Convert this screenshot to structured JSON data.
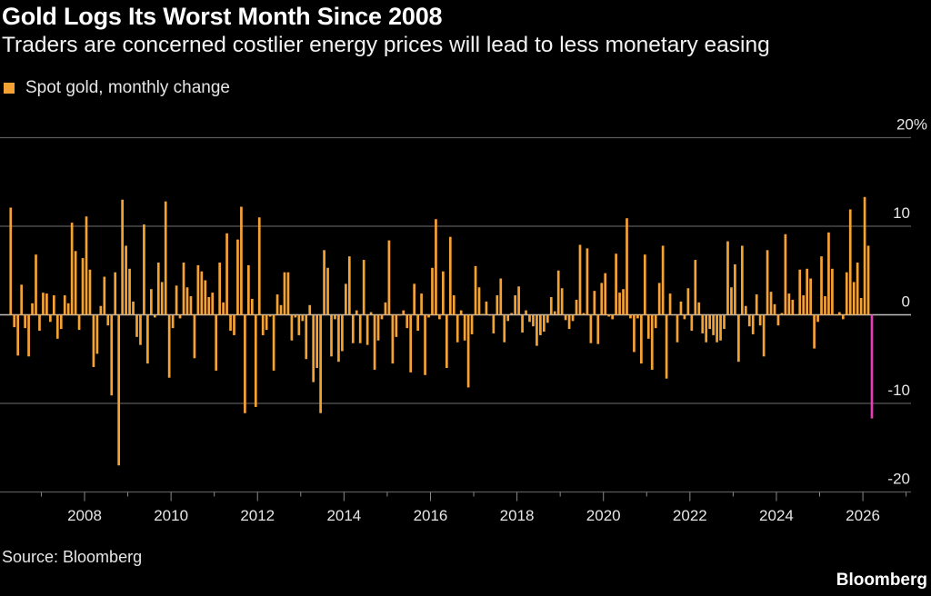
{
  "title": "Gold Logs Its Worst Month Since 2008",
  "subtitle": "Traders are concerned costlier energy prices will lead to less monetary easing",
  "source": "Source: Bloomberg",
  "logo": "Bloomberg",
  "colors": {
    "background": "#000000",
    "bar": "#f5a235",
    "highlight": "#e23fb0",
    "grid": "#5a5a5a",
    "text": "#ffffff"
  },
  "chart_data": {
    "type": "bar",
    "title": "Gold Logs Its Worst Month Since 2008",
    "subtitle": "Traders are concerned costlier energy prices will lead to less monetary easing",
    "legend": [
      {
        "name": "Spot gold, monthly change",
        "color": "#f5a235"
      }
    ],
    "legend_placement": "top-left",
    "xlabel": "",
    "ylabel": "",
    "unit": "%",
    "ylim": [
      -20,
      20
    ],
    "y_ticks": [
      {
        "value": 20,
        "label": "20%"
      },
      {
        "value": 10,
        "label": "10"
      },
      {
        "value": 0,
        "label": "0"
      },
      {
        "value": -10,
        "label": "-10"
      },
      {
        "value": -20,
        "label": "-20"
      }
    ],
    "x_ticks": [
      "2008",
      "2010",
      "2012",
      "2014",
      "2016",
      "2018",
      "2020",
      "2022",
      "2024",
      "2026"
    ],
    "grid": true,
    "y_axis_side": "right",
    "highlight_last": true,
    "series": [
      {
        "name": "Spot gold, monthly change",
        "x": [
          "2006-04",
          "2006-05",
          "2006-06",
          "2006-07",
          "2006-08",
          "2006-09",
          "2006-10",
          "2006-11",
          "2006-12",
          "2007-01",
          "2007-02",
          "2007-03",
          "2007-04",
          "2007-05",
          "2007-06",
          "2007-07",
          "2007-08",
          "2007-09",
          "2007-10",
          "2007-11",
          "2007-12",
          "2008-01",
          "2008-02",
          "2008-03",
          "2008-04",
          "2008-05",
          "2008-06",
          "2008-07",
          "2008-08",
          "2008-09",
          "2008-10",
          "2008-11",
          "2008-12",
          "2009-01",
          "2009-02",
          "2009-03",
          "2009-04",
          "2009-05",
          "2009-06",
          "2009-07",
          "2009-08",
          "2009-09",
          "2009-10",
          "2009-11",
          "2009-12",
          "2010-01",
          "2010-02",
          "2010-03",
          "2010-04",
          "2010-05",
          "2010-06",
          "2010-07",
          "2010-08",
          "2010-09",
          "2010-10",
          "2010-11",
          "2010-12",
          "2011-01",
          "2011-02",
          "2011-03",
          "2011-04",
          "2011-05",
          "2011-06",
          "2011-07",
          "2011-08",
          "2011-09",
          "2011-10",
          "2011-11",
          "2011-12",
          "2012-01",
          "2012-02",
          "2012-03",
          "2012-04",
          "2012-05",
          "2012-06",
          "2012-07",
          "2012-08",
          "2012-09",
          "2012-10",
          "2012-11",
          "2012-12",
          "2013-01",
          "2013-02",
          "2013-03",
          "2013-04",
          "2013-05",
          "2013-06",
          "2013-07",
          "2013-08",
          "2013-09",
          "2013-10",
          "2013-11",
          "2013-12",
          "2014-01",
          "2014-02",
          "2014-03",
          "2014-04",
          "2014-05",
          "2014-06",
          "2014-07",
          "2014-08",
          "2014-09",
          "2014-10",
          "2014-11",
          "2014-12",
          "2015-01",
          "2015-02",
          "2015-03",
          "2015-04",
          "2015-05",
          "2015-06",
          "2015-07",
          "2015-08",
          "2015-09",
          "2015-10",
          "2015-11",
          "2015-12",
          "2016-01",
          "2016-02",
          "2016-03",
          "2016-04",
          "2016-05",
          "2016-06",
          "2016-07",
          "2016-08",
          "2016-09",
          "2016-10",
          "2016-11",
          "2016-12",
          "2017-01",
          "2017-02",
          "2017-03",
          "2017-04",
          "2017-05",
          "2017-06",
          "2017-07",
          "2017-08",
          "2017-09",
          "2017-10",
          "2017-11",
          "2017-12",
          "2018-01",
          "2018-02",
          "2018-03",
          "2018-04",
          "2018-05",
          "2018-06",
          "2018-07",
          "2018-08",
          "2018-09",
          "2018-10",
          "2018-11",
          "2018-12",
          "2019-01",
          "2019-02",
          "2019-03",
          "2019-04",
          "2019-05",
          "2019-06",
          "2019-07",
          "2019-08",
          "2019-09",
          "2019-10",
          "2019-11",
          "2019-12",
          "2020-01",
          "2020-02",
          "2020-03",
          "2020-04",
          "2020-05",
          "2020-06",
          "2020-07",
          "2020-08",
          "2020-09",
          "2020-10",
          "2020-11",
          "2020-12",
          "2021-01",
          "2021-02",
          "2021-03",
          "2021-04",
          "2021-05",
          "2021-06",
          "2021-07",
          "2021-08",
          "2021-09",
          "2021-10",
          "2021-11",
          "2021-12",
          "2022-01",
          "2022-02",
          "2022-03",
          "2022-04",
          "2022-05",
          "2022-06",
          "2022-07",
          "2022-08",
          "2022-09",
          "2022-10",
          "2022-11",
          "2022-12",
          "2023-01",
          "2023-02",
          "2023-03",
          "2023-04",
          "2023-05",
          "2023-06",
          "2023-07",
          "2023-08",
          "2023-09",
          "2023-10",
          "2023-11",
          "2023-12",
          "2024-01",
          "2024-02",
          "2024-03",
          "2024-04",
          "2024-05",
          "2024-06",
          "2024-07",
          "2024-08",
          "2024-09",
          "2024-10",
          "2024-11",
          "2024-12",
          "2025-01",
          "2025-02",
          "2025-03",
          "2025-04",
          "2025-05",
          "2025-06",
          "2025-07",
          "2025-08",
          "2025-09",
          "2025-10",
          "2025-11",
          "2025-12",
          "2026-01",
          "2026-02",
          "2026-03"
        ],
        "values": [
          12.1,
          -1.4,
          -4.6,
          3.4,
          -1.5,
          -4.7,
          1.3,
          6.8,
          -1.8,
          2.5,
          2.4,
          -0.8,
          2.2,
          -2.7,
          -1.6,
          2.2,
          1.3,
          10.4,
          7.2,
          -1.7,
          6.4,
          11.1,
          5.1,
          -5.9,
          -4.4,
          1.0,
          4.3,
          -1.2,
          -9.1,
          4.8,
          -17.0,
          13.0,
          7.8,
          5.2,
          1.5,
          -2.5,
          -3.4,
          10.2,
          -5.5,
          2.9,
          -0.3,
          5.9,
          3.7,
          12.8,
          -7.1,
          -1.5,
          3.3,
          -0.4,
          5.9,
          3.1,
          2.1,
          -4.9,
          5.6,
          4.9,
          3.9,
          2.0,
          2.5,
          -6.3,
          5.9,
          1.4,
          9.2,
          -1.8,
          -2.3,
          8.5,
          12.2,
          -11.1,
          5.6,
          1.8,
          -10.4,
          11.0,
          -2.3,
          -1.7,
          -0.2,
          -6.3,
          2.3,
          1.1,
          4.8,
          4.8,
          -2.9,
          -0.3,
          -2.3,
          -0.7,
          -5.0,
          1.1,
          -7.6,
          -6.0,
          -11.1,
          7.3,
          5.3,
          -4.7,
          -0.5,
          -5.3,
          -4.1,
          3.5,
          6.6,
          -3.2,
          0.5,
          -3.2,
          6.2,
          -3.4,
          0.3,
          -6.2,
          -2.9,
          -0.5,
          1.4,
          8.4,
          -5.5,
          -2.5,
          -0.1,
          0.5,
          -1.5,
          -6.5,
          3.5,
          -1.8,
          2.4,
          -6.8,
          -0.3,
          5.3,
          10.8,
          -0.5,
          4.9,
          -6.0,
          8.8,
          2.2,
          -3.1,
          0.5,
          -2.9,
          -8.2,
          -2.2,
          5.5,
          3.1,
          0.1,
          1.5,
          -0.1,
          -2.1,
          2.2,
          4.1,
          -3.1,
          -0.7,
          0.2,
          2.2,
          3.2,
          -2.0,
          0.5,
          -0.8,
          -1.3,
          -3.5,
          -2.3,
          -1.9,
          -0.9,
          2.0,
          0.4,
          5.0,
          3.0,
          -0.6,
          -1.6,
          -0.7,
          1.7,
          7.9,
          0.2,
          7.5,
          -3.2,
          2.7,
          -3.3,
          3.6,
          4.7,
          -0.2,
          -0.5,
          6.9,
          2.5,
          2.9,
          10.9,
          -0.4,
          -4.2,
          -0.4,
          -5.5,
          6.8,
          -2.7,
          -6.2,
          -1.5,
          3.6,
          7.8,
          -7.2,
          2.4,
          0.0,
          -3.1,
          1.5,
          -0.5,
          3.0,
          -1.8,
          6.2,
          1.4,
          -2.1,
          -3.1,
          -1.6,
          -2.3,
          -3.1,
          -2.9,
          -1.6,
          8.3,
          3.1,
          5.7,
          -5.3,
          7.8,
          1.0,
          -1.3,
          -2.2,
          2.3,
          -1.2,
          -4.7,
          7.3,
          2.6,
          1.2,
          -1.2,
          0.2,
          9.1,
          2.4,
          1.7,
          0.0,
          5.1,
          2.2,
          5.2,
          4.1,
          -3.8,
          -0.8,
          6.6,
          2.1,
          9.3,
          5.2,
          0.0,
          0.3,
          -0.5,
          4.8,
          11.9,
          3.7,
          5.9,
          1.9,
          13.3,
          7.8,
          -11.7
        ]
      }
    ]
  }
}
